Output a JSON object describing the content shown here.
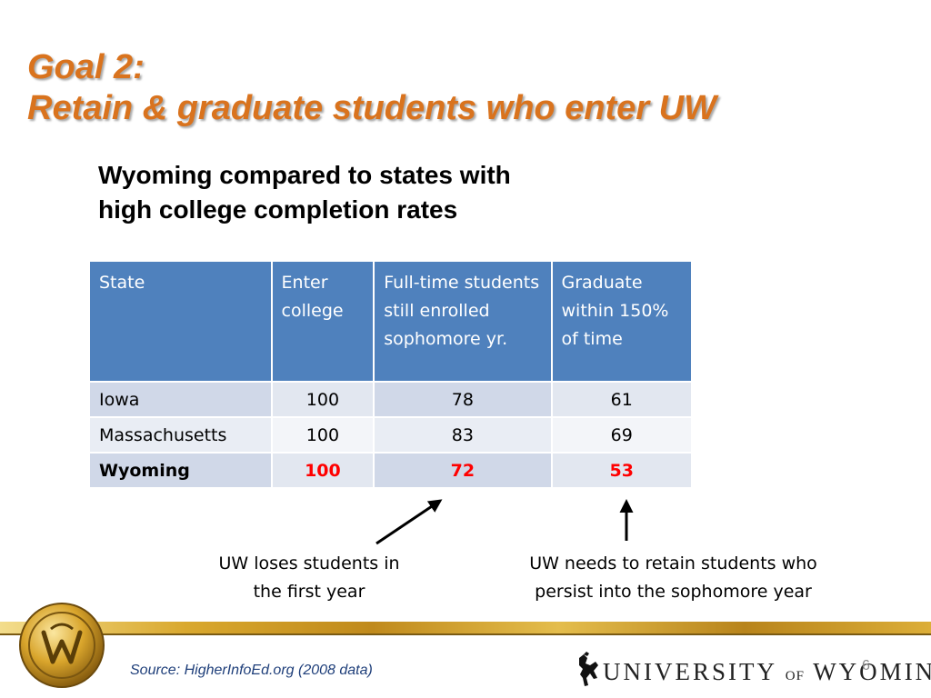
{
  "title": {
    "line1": "Goal 2:",
    "line2": "Retain & graduate students who enter UW"
  },
  "subtitle": {
    "line1": "Wyoming compared to states with",
    "line2": "high college completion rates"
  },
  "table": {
    "headers": [
      "State",
      "Enter college",
      "Full-time students still enrolled sophomore yr.",
      "Graduate within 150% of time"
    ],
    "rows": [
      [
        "Iowa",
        "100",
        "78",
        "61"
      ],
      [
        "Massachusetts",
        "100",
        "83",
        "69"
      ],
      [
        "Wyoming",
        "100",
        "72",
        "53"
      ]
    ]
  },
  "annotations": {
    "first_year": {
      "line1": "UW loses students in",
      "line2": "the first year"
    },
    "sophomore": {
      "line1": "UW needs to retain students who",
      "line2": "persist into the sophomore year"
    }
  },
  "footer": {
    "source": "Source: HigherInfoEd.org (2008 data)",
    "logo_main": "UNIVERSITY",
    "logo_of": "OF",
    "logo_state": "WYOMING",
    "page_number": "6"
  },
  "colors": {
    "title": "#d9731e",
    "table_header": "#4f81bd",
    "highlight": "#ff0000",
    "source_text": "#1f3f7a",
    "gold": "#c08a1c"
  },
  "icons": {
    "seal": "university-seal-icon",
    "bucking_horse": "bucking-horse-icon"
  }
}
